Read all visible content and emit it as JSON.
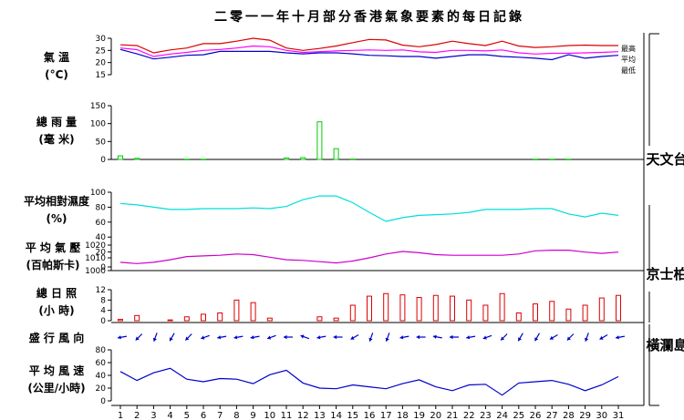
{
  "chart_data": {
    "type": "line",
    "title": "二零一一年十月部分香港氣象要素的每日記錄",
    "x": [
      "1",
      "2",
      "3",
      "4",
      "5",
      "6",
      "7",
      "8",
      "9",
      "10",
      "11",
      "12",
      "13",
      "14",
      "15",
      "16",
      "17",
      "18",
      "19",
      "20",
      "21",
      "22",
      "23",
      "24",
      "25",
      "26",
      "27",
      "28",
      "29",
      "30",
      "31"
    ],
    "stations": {
      "observatory": "天文台",
      "kings_park": "京士柏",
      "waglan": "橫瀾島"
    },
    "panels": {
      "temperature": {
        "label_lines": [
          "氣 溫",
          "(°C)"
        ],
        "ylim": [
          15,
          30
        ],
        "ticks": [
          "30",
          "25",
          "20",
          "15"
        ],
        "series": [
          {
            "name": "最高",
            "color": "#dd0000",
            "values": [
              27.3,
              27.0,
              24.0,
              25.2,
              26.0,
              27.8,
              27.8,
              28.8,
              30.0,
              29.2,
              26.0,
              25.0,
              25.8,
              26.8,
              28.2,
              29.5,
              29.3,
              27.2,
              26.5,
              27.4,
              28.8,
              27.8,
              27.0,
              28.8,
              26.8,
              26.2,
              26.5,
              27.0,
              27.2,
              27.0,
              27.0
            ]
          },
          {
            "name": "平均",
            "color": "#ff00ff",
            "values": [
              26.0,
              25.3,
              22.5,
              23.5,
              24.2,
              25.0,
              25.4,
              26.0,
              26.8,
              26.5,
              25.0,
              24.2,
              24.5,
              24.8,
              25.0,
              25.2,
              25.0,
              25.2,
              24.4,
              24.2,
              25.0,
              25.0,
              24.8,
              25.2,
              24.0,
              23.5,
              23.8,
              23.8,
              24.0,
              24.2,
              24.5
            ]
          },
          {
            "name": "最低",
            "color": "#0000cc",
            "values": [
              25.4,
              23.6,
              21.5,
              22.2,
              23.0,
              23.2,
              24.6,
              24.6,
              24.6,
              24.6,
              24.0,
              23.6,
              24.0,
              24.0,
              23.6,
              23.0,
              22.8,
              22.5,
              22.5,
              21.8,
              22.5,
              23.2,
              23.2,
              22.5,
              22.2,
              21.8,
              21.2,
              23.2,
              21.8,
              22.5,
              23.0
            ]
          }
        ]
      },
      "rainfall": {
        "label_lines": [
          "總 雨 量",
          "(毫 米)"
        ],
        "ylim": [
          0,
          150
        ],
        "ticks": [
          "150",
          "100",
          "50",
          "0"
        ],
        "color": "#00cc00",
        "values": [
          10,
          3,
          0,
          0,
          0.5,
          0.5,
          0,
          0,
          0,
          0,
          4,
          5,
          105,
          30,
          1,
          0,
          0,
          0,
          0,
          0,
          0,
          0,
          0,
          0,
          0,
          0.5,
          0.5,
          0.5,
          0,
          0,
          0
        ]
      },
      "humidity": {
        "label_lines": [
          "平均相對濕度",
          "(%)"
        ],
        "ylim": [
          0,
          100
        ],
        "ticks": [
          "100",
          "80",
          "60",
          "40",
          "20",
          "0"
        ],
        "color": "#00dddd",
        "values": [
          85,
          83,
          80,
          77,
          77,
          78,
          78,
          78,
          79,
          78,
          81,
          90,
          95,
          95,
          86,
          73,
          61,
          66,
          69,
          70,
          71,
          73,
          77,
          77,
          77,
          78,
          78,
          71,
          67,
          72,
          69
        ]
      },
      "pressure": {
        "label_lines": [
          "平 均 氣 壓",
          "(百帕斯卡)"
        ],
        "ylim": [
          1000,
          1020
        ],
        "ticks": [
          "1020",
          "1010",
          "1000"
        ],
        "color": "#cc00cc",
        "values": [
          1006.5,
          1005.5,
          1006.5,
          1008.5,
          1011.0,
          1011.5,
          1012.0,
          1013.0,
          1012.5,
          1010.5,
          1008.5,
          1008.0,
          1007.0,
          1006.0,
          1007.5,
          1010.0,
          1013.0,
          1015.0,
          1014.0,
          1012.5,
          1012.0,
          1012.0,
          1012.0,
          1012.0,
          1013.0,
          1015.5,
          1016.0,
          1016.0,
          1014.5,
          1013.5,
          1014.5
        ]
      },
      "sunshine": {
        "label_lines": [
          "總 日 照",
          "(小 時)"
        ],
        "ylim": [
          0,
          12
        ],
        "ticks": [
          "12",
          "8",
          "4",
          "0"
        ],
        "color": "#dd0000",
        "values": [
          0.5,
          2.0,
          0,
          0.3,
          1.5,
          2.5,
          3.0,
          8.0,
          7.0,
          1.0,
          0,
          0,
          1.5,
          1.0,
          6.0,
          9.5,
          10.5,
          10.0,
          9.0,
          9.8,
          9.5,
          8.0,
          6.0,
          10.5,
          3.0,
          6.5,
          7.5,
          4.5,
          6.0,
          8.8,
          9.8
        ]
      },
      "wind_direction": {
        "label": "盛 行 風 向",
        "color": "#0000cc",
        "degrees": [
          80,
          45,
          20,
          30,
          45,
          70,
          80,
          80,
          80,
          70,
          90,
          110,
          80,
          90,
          60,
          20,
          20,
          80,
          90,
          100,
          90,
          80,
          70,
          45,
          30,
          30,
          60,
          45,
          20,
          60,
          80
        ]
      },
      "wind_speed": {
        "label_lines": [
          "平 均 風 速",
          "(公里/小時)"
        ],
        "ylim": [
          0,
          80
        ],
        "ticks": [
          "80",
          "60",
          "40",
          "20",
          "0"
        ],
        "color": "#0000cc",
        "values": [
          46,
          32,
          44,
          51,
          34,
          30,
          35,
          34,
          27,
          41,
          48,
          28,
          20,
          19,
          25,
          22,
          19,
          27,
          33,
          22,
          16,
          25,
          26,
          9,
          28,
          30,
          32,
          26,
          16,
          25,
          38
        ]
      }
    }
  }
}
